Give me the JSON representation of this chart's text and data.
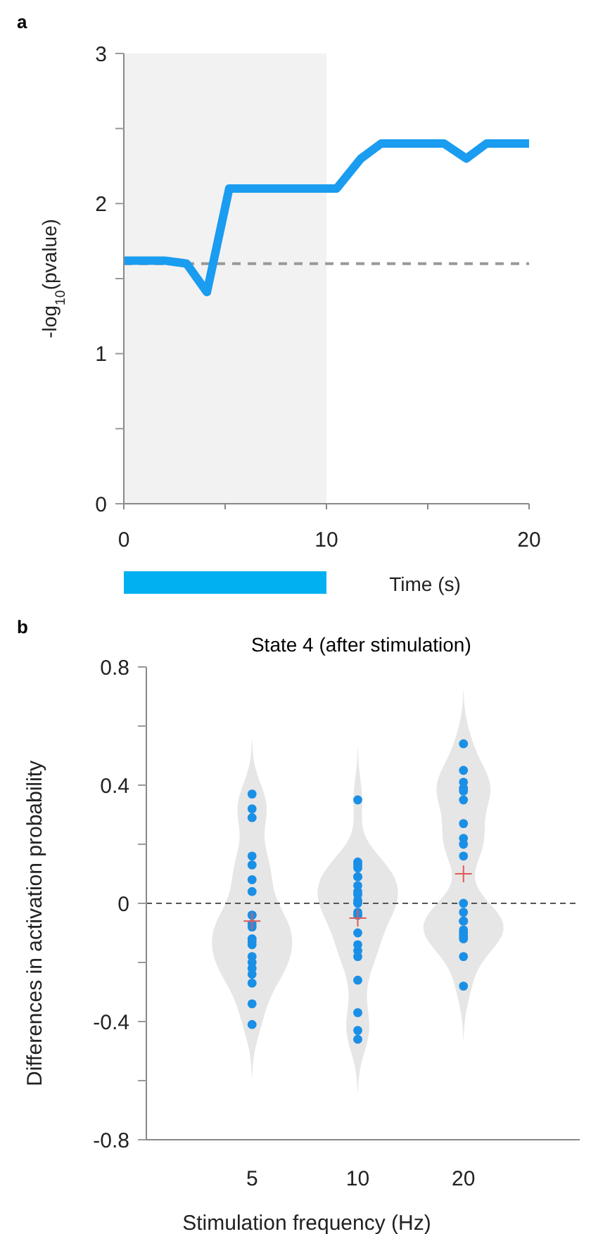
{
  "chart_data": [
    {
      "type": "line",
      "annotations": [
        "a"
      ],
      "xlabel": "Time (s)",
      "ylabel": "-log$_{10}$(pvalue)",
      "x": [
        0,
        2,
        3.1,
        4.1,
        5.2,
        10.5,
        11.7,
        12.7,
        15.8,
        16.9,
        17.9,
        20
      ],
      "series": [
        {
          "color": "#1a9cf0",
          "values": [
            1.62,
            1.62,
            1.6,
            1.41,
            2.1,
            2.1,
            2.3,
            2.4,
            2.4,
            2.3,
            2.4,
            2.4
          ]
        }
      ],
      "xlim": [
        0,
        20
      ],
      "xticks": [
        0,
        {
          "value": 5,
          "label": null
        },
        10,
        {
          "value": 15,
          "label": null
        },
        20
      ],
      "ylim": [
        0,
        3
      ],
      "yticks": [
        0,
        {
          "value": 0.5,
          "label": null
        },
        1,
        {
          "value": 1.5,
          "label": null
        },
        2,
        {
          "value": 2.5,
          "label": null
        },
        3
      ],
      "bands": [
        {
          "axis": "x",
          "from": 0,
          "to": 10,
          "color": "#f2f2f2"
        }
      ],
      "ref_lines": [
        {
          "axis": "y",
          "value": 1.6,
          "color": "#999999",
          "line_style": "dashed"
        }
      ],
      "legend": false,
      "grid": false,
      "marker": "none",
      "line_style": "solid"
    },
    {
      "type": "scatter",
      "annotations": [
        "b"
      ],
      "title": "State 4 (after stimulation)",
      "xlabel": "Stimulation frequency (Hz)",
      "ylabel": "Differences in activation probability",
      "categories": [
        "5",
        "10",
        "20"
      ],
      "series": [
        {
          "color": "#1a8fe6",
          "marker": "circle",
          "x": [
            "5",
            "5",
            "5",
            "5",
            "5",
            "5",
            "5",
            "5",
            "5",
            "5",
            "5",
            "5",
            "5",
            "5",
            "5",
            "5",
            "5",
            "5",
            "5",
            "5",
            "5",
            "10",
            "10",
            "10",
            "10",
            "10",
            "10",
            "10",
            "10",
            "10",
            "10",
            "10",
            "10",
            "10",
            "10",
            "10",
            "10",
            "10",
            "10",
            "10",
            "10",
            "10",
            "10",
            "20",
            "20",
            "20",
            "20",
            "20",
            "20",
            "20",
            "20",
            "20",
            "20",
            "20",
            "20",
            "20",
            "20",
            "20",
            "20",
            "20",
            "20",
            "20",
            "20"
          ],
          "values": [
            0.37,
            0.32,
            0.29,
            0.16,
            0.13,
            0.08,
            0.04,
            -0.04,
            -0.04,
            -0.07,
            -0.08,
            -0.12,
            -0.13,
            -0.14,
            -0.18,
            -0.2,
            -0.22,
            -0.24,
            -0.27,
            -0.34,
            -0.41,
            0.35,
            0.14,
            0.13,
            0.12,
            0.09,
            0.09,
            0.06,
            0.04,
            0.03,
            0.01,
            0,
            -0.03,
            -0.04,
            -0.04,
            -0.1,
            -0.14,
            -0.16,
            -0.18,
            -0.26,
            -0.37,
            -0.43,
            -0.46,
            0.54,
            0.45,
            0.41,
            0.39,
            0.38,
            0.35,
            0.27,
            0.22,
            0.2,
            0.16,
            0,
            -0.03,
            -0.06,
            -0.06,
            -0.09,
            -0.1,
            -0.11,
            -0.12,
            -0.18,
            -0.28
          ]
        },
        {
          "color": "#e05a55",
          "marker": "cross",
          "x": [
            "5",
            "10",
            "20"
          ],
          "values": [
            -0.06,
            -0.05,
            0.1
          ]
        }
      ],
      "ylim": [
        -0.8,
        0.8
      ],
      "yticks": [
        -0.8,
        {
          "value": -0.6,
          "label": null
        },
        -0.4,
        {
          "value": -0.2,
          "label": null
        },
        0,
        {
          "value": 0.2,
          "label": null
        },
        0.4,
        {
          "value": 0.6,
          "label": null
        },
        0.8
      ],
      "ref_lines": [
        {
          "axis": "y",
          "value": 0,
          "color": "#555555",
          "line_style": "dashed"
        }
      ],
      "legend": false,
      "grid": false
    }
  ]
}
